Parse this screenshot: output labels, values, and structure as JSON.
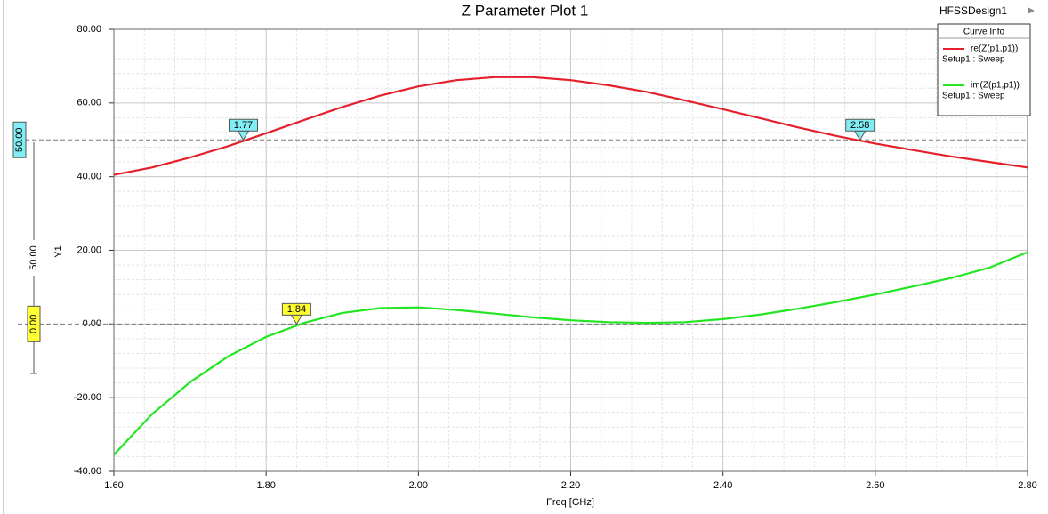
{
  "chart_data": {
    "type": "line",
    "title": "Z Parameter Plot 1",
    "design": "HFSSDesign1",
    "legend_title": "Curve Info",
    "x_label": "Freq [GHz]",
    "y_label": "Y1",
    "x": [
      1.6,
      1.65,
      1.7,
      1.75,
      1.8,
      1.85,
      1.9,
      1.95,
      2.0,
      2.05,
      2.1,
      2.15,
      2.2,
      2.25,
      2.3,
      2.35,
      2.4,
      2.45,
      2.5,
      2.55,
      2.6,
      2.65,
      2.7,
      2.75,
      2.8
    ],
    "series": [
      {
        "name": "re(Z(p1,p1))",
        "source": "Setup1 : Sweep",
        "color": "#e3202b",
        "values": [
          40.5,
          42.5,
          45.2,
          48.3,
          51.8,
          55.4,
          58.9,
          62.0,
          64.5,
          66.2,
          67.0,
          67.0,
          66.2,
          64.8,
          63.0,
          60.7,
          58.3,
          55.8,
          53.3,
          51.0,
          49.0,
          47.2,
          45.5,
          44.0,
          42.5
        ]
      },
      {
        "name": "im(Z(p1,p1))",
        "source": "Setup1 : Sweep",
        "color": "#22e622",
        "values": [
          -35.5,
          -24.5,
          -15.8,
          -8.8,
          -3.5,
          0.3,
          3.0,
          4.3,
          4.5,
          3.8,
          2.8,
          1.8,
          1.0,
          0.5,
          0.3,
          0.5,
          1.3,
          2.6,
          4.2,
          6.0,
          8.0,
          10.2,
          12.5,
          15.3,
          19.5
        ]
      }
    ],
    "xlim": [
      1.6,
      2.8
    ],
    "ylim": [
      -40,
      80
    ],
    "xticks": [
      {
        "value": 1.6,
        "label": "1.60"
      },
      {
        "value": 1.8,
        "label": "1.80"
      },
      {
        "value": 2.0,
        "label": "2.00"
      },
      {
        "value": 2.2,
        "label": "2.20"
      },
      {
        "value": 2.4,
        "label": "2.40"
      },
      {
        "value": 2.6,
        "label": "2.60"
      },
      {
        "value": 2.8,
        "label": "2.80"
      }
    ],
    "yticks": [
      {
        "value": -40,
        "label": "-40.00"
      },
      {
        "value": -20,
        "label": "-20.00"
      },
      {
        "value": 0,
        "label": "0.00"
      },
      {
        "value": 20,
        "label": "20.00"
      },
      {
        "value": 40,
        "label": "40.00"
      },
      {
        "value": 60,
        "label": "60.00"
      },
      {
        "value": 80,
        "label": "80.00"
      }
    ],
    "grid": true,
    "hlines": [
      {
        "value": 50,
        "label": "50.00",
        "color": "#80eef4"
      },
      {
        "value": 0,
        "label": "0.00",
        "color": "#ffff33"
      }
    ],
    "hline_delta": "50.00",
    "markers": [
      {
        "x": 1.77,
        "y": 50,
        "color": "#80eef4"
      },
      {
        "x": 2.58,
        "y": 50,
        "color": "#80eef4"
      },
      {
        "x": 1.84,
        "y": 0,
        "color": "#ffff33"
      }
    ]
  }
}
